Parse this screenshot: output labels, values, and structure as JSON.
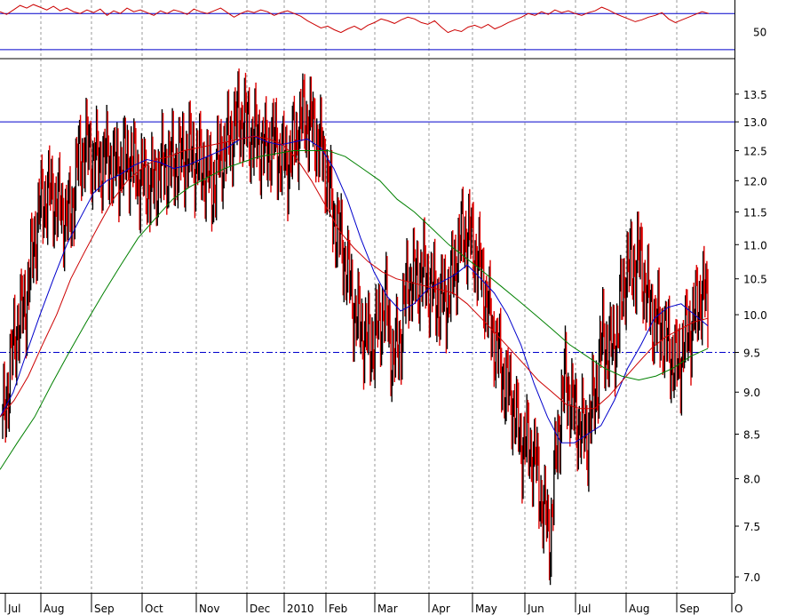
{
  "chart_data": [
    {
      "panel": "indicator",
      "type": "line",
      "y_tick_labels": [
        "50"
      ],
      "y_ticks": [
        50
      ],
      "ylim": [
        20,
        85
      ],
      "reference_lines": [
        70,
        30
      ],
      "series": [
        {
          "color": "#cc0000",
          "values": [
            72,
            69,
            74,
            79,
            76,
            80,
            77,
            74,
            78,
            73,
            76,
            72,
            70,
            74,
            71,
            75,
            68,
            73,
            70,
            76,
            72,
            74,
            71,
            68,
            73,
            70,
            74,
            72,
            69,
            75,
            72,
            70,
            73,
            76,
            71,
            66,
            70,
            73,
            71,
            74,
            72,
            68,
            71,
            73,
            70,
            67,
            62,
            58,
            54,
            56,
            52,
            49,
            53,
            56,
            52,
            57,
            60,
            64,
            62,
            59,
            63,
            66,
            64,
            60,
            58,
            62,
            55,
            49,
            52,
            50,
            55,
            57,
            54,
            58,
            53,
            56,
            60,
            63,
            66,
            70,
            68,
            72,
            69,
            74,
            71,
            73,
            70,
            68,
            71,
            73,
            77,
            74,
            70,
            67,
            64,
            61,
            63,
            66,
            68,
            71,
            64,
            60,
            63,
            66,
            69,
            72,
            70
          ]
        }
      ]
    },
    {
      "panel": "price",
      "type": "line",
      "scale": "log",
      "ylim": [
        6.85,
        14.15
      ],
      "y_ticks": [
        7.0,
        7.5,
        8.0,
        8.5,
        9.0,
        9.5,
        10.0,
        10.5,
        11.0,
        11.5,
        12.0,
        12.5,
        13.0,
        13.5
      ],
      "y_tick_labels": [
        "7.0",
        "7.5",
        "8.0",
        "8.5",
        "9.0",
        "9.5",
        "10.0",
        "10.5",
        "11.0",
        "11.5",
        "12.0",
        "12.5",
        "13.0",
        "13.5"
      ],
      "x_tick_labels": [
        "Jul",
        "Aug",
        "Sep",
        "Oct",
        "Nov",
        "Dec",
        "2010",
        "Feb",
        "Mar",
        "Apr",
        "May",
        "Jun",
        "Jul",
        "Aug",
        "Sep",
        "O"
      ],
      "reference_lines": [
        13.0,
        9.5
      ],
      "grid": "vertical dashed",
      "price": [
        8.6,
        9.3,
        9.9,
        10.1,
        10.9,
        11.6,
        11.8,
        11.7,
        11.5,
        11.4,
        12.3,
        12.6,
        12.4,
        12.3,
        12.4,
        12.2,
        12.3,
        12.4,
        12.1,
        12.0,
        11.9,
        12.2,
        12.3,
        12.3,
        12.4,
        12.5,
        12.3,
        12.2,
        11.9,
        12.4,
        12.6,
        13.0,
        13.1,
        12.8,
        12.7,
        12.5,
        12.7,
        12.4,
        12.3,
        12.7,
        13.1,
        13.0,
        12.7,
        12.3,
        11.5,
        11.1,
        10.6,
        10.0,
        9.8,
        9.6,
        9.8,
        10.2,
        9.4,
        9.7,
        10.5,
        10.5,
        10.6,
        10.4,
        10.2,
        10.2,
        10.5,
        11.1,
        11.2,
        10.9,
        10.5,
        9.9,
        9.5,
        9.1,
        8.9,
        8.4,
        8.4,
        8.2,
        7.7,
        7.4,
        8.5,
        9.2,
        8.8,
        8.6,
        8.5,
        9.0,
        9.7,
        9.5,
        9.8,
        10.6,
        10.7,
        10.8,
        10.2,
        9.9,
        9.8,
        9.5,
        9.3,
        9.7,
        9.9,
        10.3,
        10.2
      ],
      "series": [
        {
          "color": "#0000cc",
          "values": [
            8.7,
            9.0,
            9.5,
            10.0,
            10.5,
            11.0,
            11.4,
            11.8,
            12.0,
            12.1,
            12.25,
            12.35,
            12.3,
            12.2,
            12.25,
            12.35,
            12.45,
            12.55,
            12.7,
            12.75,
            12.65,
            12.6,
            12.65,
            12.7,
            12.55,
            12.2,
            11.7,
            11.1,
            10.6,
            10.25,
            10.05,
            10.15,
            10.35,
            10.45,
            10.55,
            10.7,
            10.5,
            10.3,
            10.0,
            9.6,
            9.1,
            8.7,
            8.4,
            8.4,
            8.5,
            8.6,
            8.9,
            9.3,
            9.6,
            9.95,
            10.1,
            10.15,
            10.0,
            9.85
          ]
        },
        {
          "color": "#cc0000",
          "values": [
            8.7,
            8.9,
            9.2,
            9.6,
            10.0,
            10.5,
            10.9,
            11.3,
            11.7,
            12.0,
            12.2,
            12.35,
            12.4,
            12.5,
            12.55,
            12.6,
            12.65,
            12.7,
            12.75,
            12.7,
            12.6,
            12.35,
            12.0,
            11.6,
            11.2,
            10.95,
            10.75,
            10.6,
            10.5,
            10.45,
            10.4,
            10.35,
            10.3,
            10.15,
            9.95,
            9.75,
            9.55,
            9.35,
            9.15,
            9.0,
            8.85,
            8.8,
            8.8,
            8.95,
            9.15,
            9.35,
            9.55,
            9.7,
            9.8,
            9.9,
            9.95
          ]
        },
        {
          "color": "#008000",
          "values": [
            8.1,
            8.4,
            8.7,
            9.1,
            9.5,
            9.9,
            10.3,
            10.7,
            11.1,
            11.4,
            11.7,
            11.9,
            12.05,
            12.2,
            12.3,
            12.4,
            12.45,
            12.5,
            12.5,
            12.5,
            12.4,
            12.2,
            12.0,
            11.7,
            11.5,
            11.25,
            11.0,
            10.8,
            10.6,
            10.4,
            10.2,
            10.0,
            9.8,
            9.6,
            9.45,
            9.3,
            9.2,
            9.15,
            9.2,
            9.3,
            9.45,
            9.55
          ]
        }
      ]
    }
  ]
}
